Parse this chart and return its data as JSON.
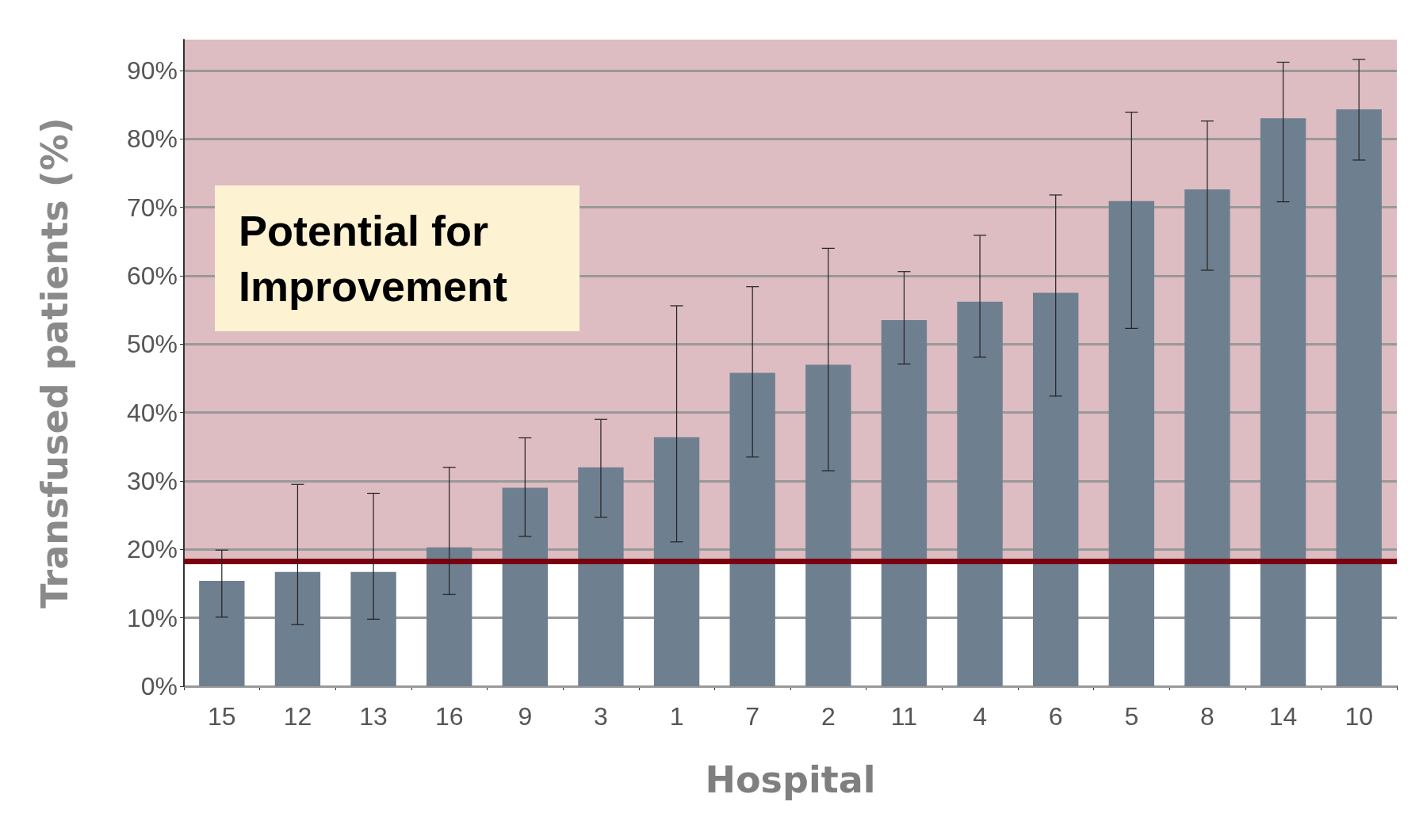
{
  "chart_data": {
    "type": "bar",
    "xlabel": "Hospital",
    "ylabel": "Transfused patients (%)",
    "categories": [
      "15",
      "12",
      "13",
      "16",
      "9",
      "3",
      "1",
      "7",
      "2",
      "11",
      "4",
      "6",
      "5",
      "8",
      "14",
      "10"
    ],
    "values": [
      15.4,
      16.7,
      16.7,
      20.3,
      29.0,
      32.0,
      36.4,
      45.8,
      47.0,
      53.5,
      56.2,
      57.5,
      70.9,
      72.6,
      83.0,
      84.3
    ],
    "errors": [
      [
        10.1,
        19.9
      ],
      [
        9.0,
        29.5
      ],
      [
        9.8,
        28.2
      ],
      [
        13.4,
        32.0
      ],
      [
        21.9,
        36.3
      ],
      [
        24.7,
        39.0
      ],
      [
        21.1,
        55.6
      ],
      [
        33.5,
        58.4
      ],
      [
        31.5,
        64.0
      ],
      [
        47.1,
        60.6
      ],
      [
        48.1,
        65.9
      ],
      [
        42.4,
        71.8
      ],
      [
        52.3,
        83.9
      ],
      [
        60.8,
        82.6
      ],
      [
        70.8,
        91.2
      ],
      [
        76.9,
        91.6
      ]
    ],
    "color": "#6e7f90",
    "ylim": [
      0,
      94.5
    ],
    "yticks": [
      {
        "value": 0,
        "label": "0%"
      },
      {
        "value": 10,
        "label": "10%"
      },
      {
        "value": 20,
        "label": "20%"
      },
      {
        "value": 30,
        "label": "30%"
      },
      {
        "value": 40,
        "label": "40%"
      },
      {
        "value": 50,
        "label": "50%"
      },
      {
        "value": 60,
        "label": "60%"
      },
      {
        "value": 70,
        "label": "70%"
      },
      {
        "value": 80,
        "label": "80%"
      },
      {
        "value": 90,
        "label": "90%"
      }
    ],
    "grid": "y",
    "ref_lines": [
      {
        "axis": "y",
        "value": 18.3,
        "color": "#7a0010"
      }
    ],
    "bands": [
      {
        "axis": "y",
        "from": 18.3,
        "to": 94.5,
        "color": "#ddbcc2"
      }
    ],
    "annotations": [
      "Potential for Improvement"
    ]
  }
}
